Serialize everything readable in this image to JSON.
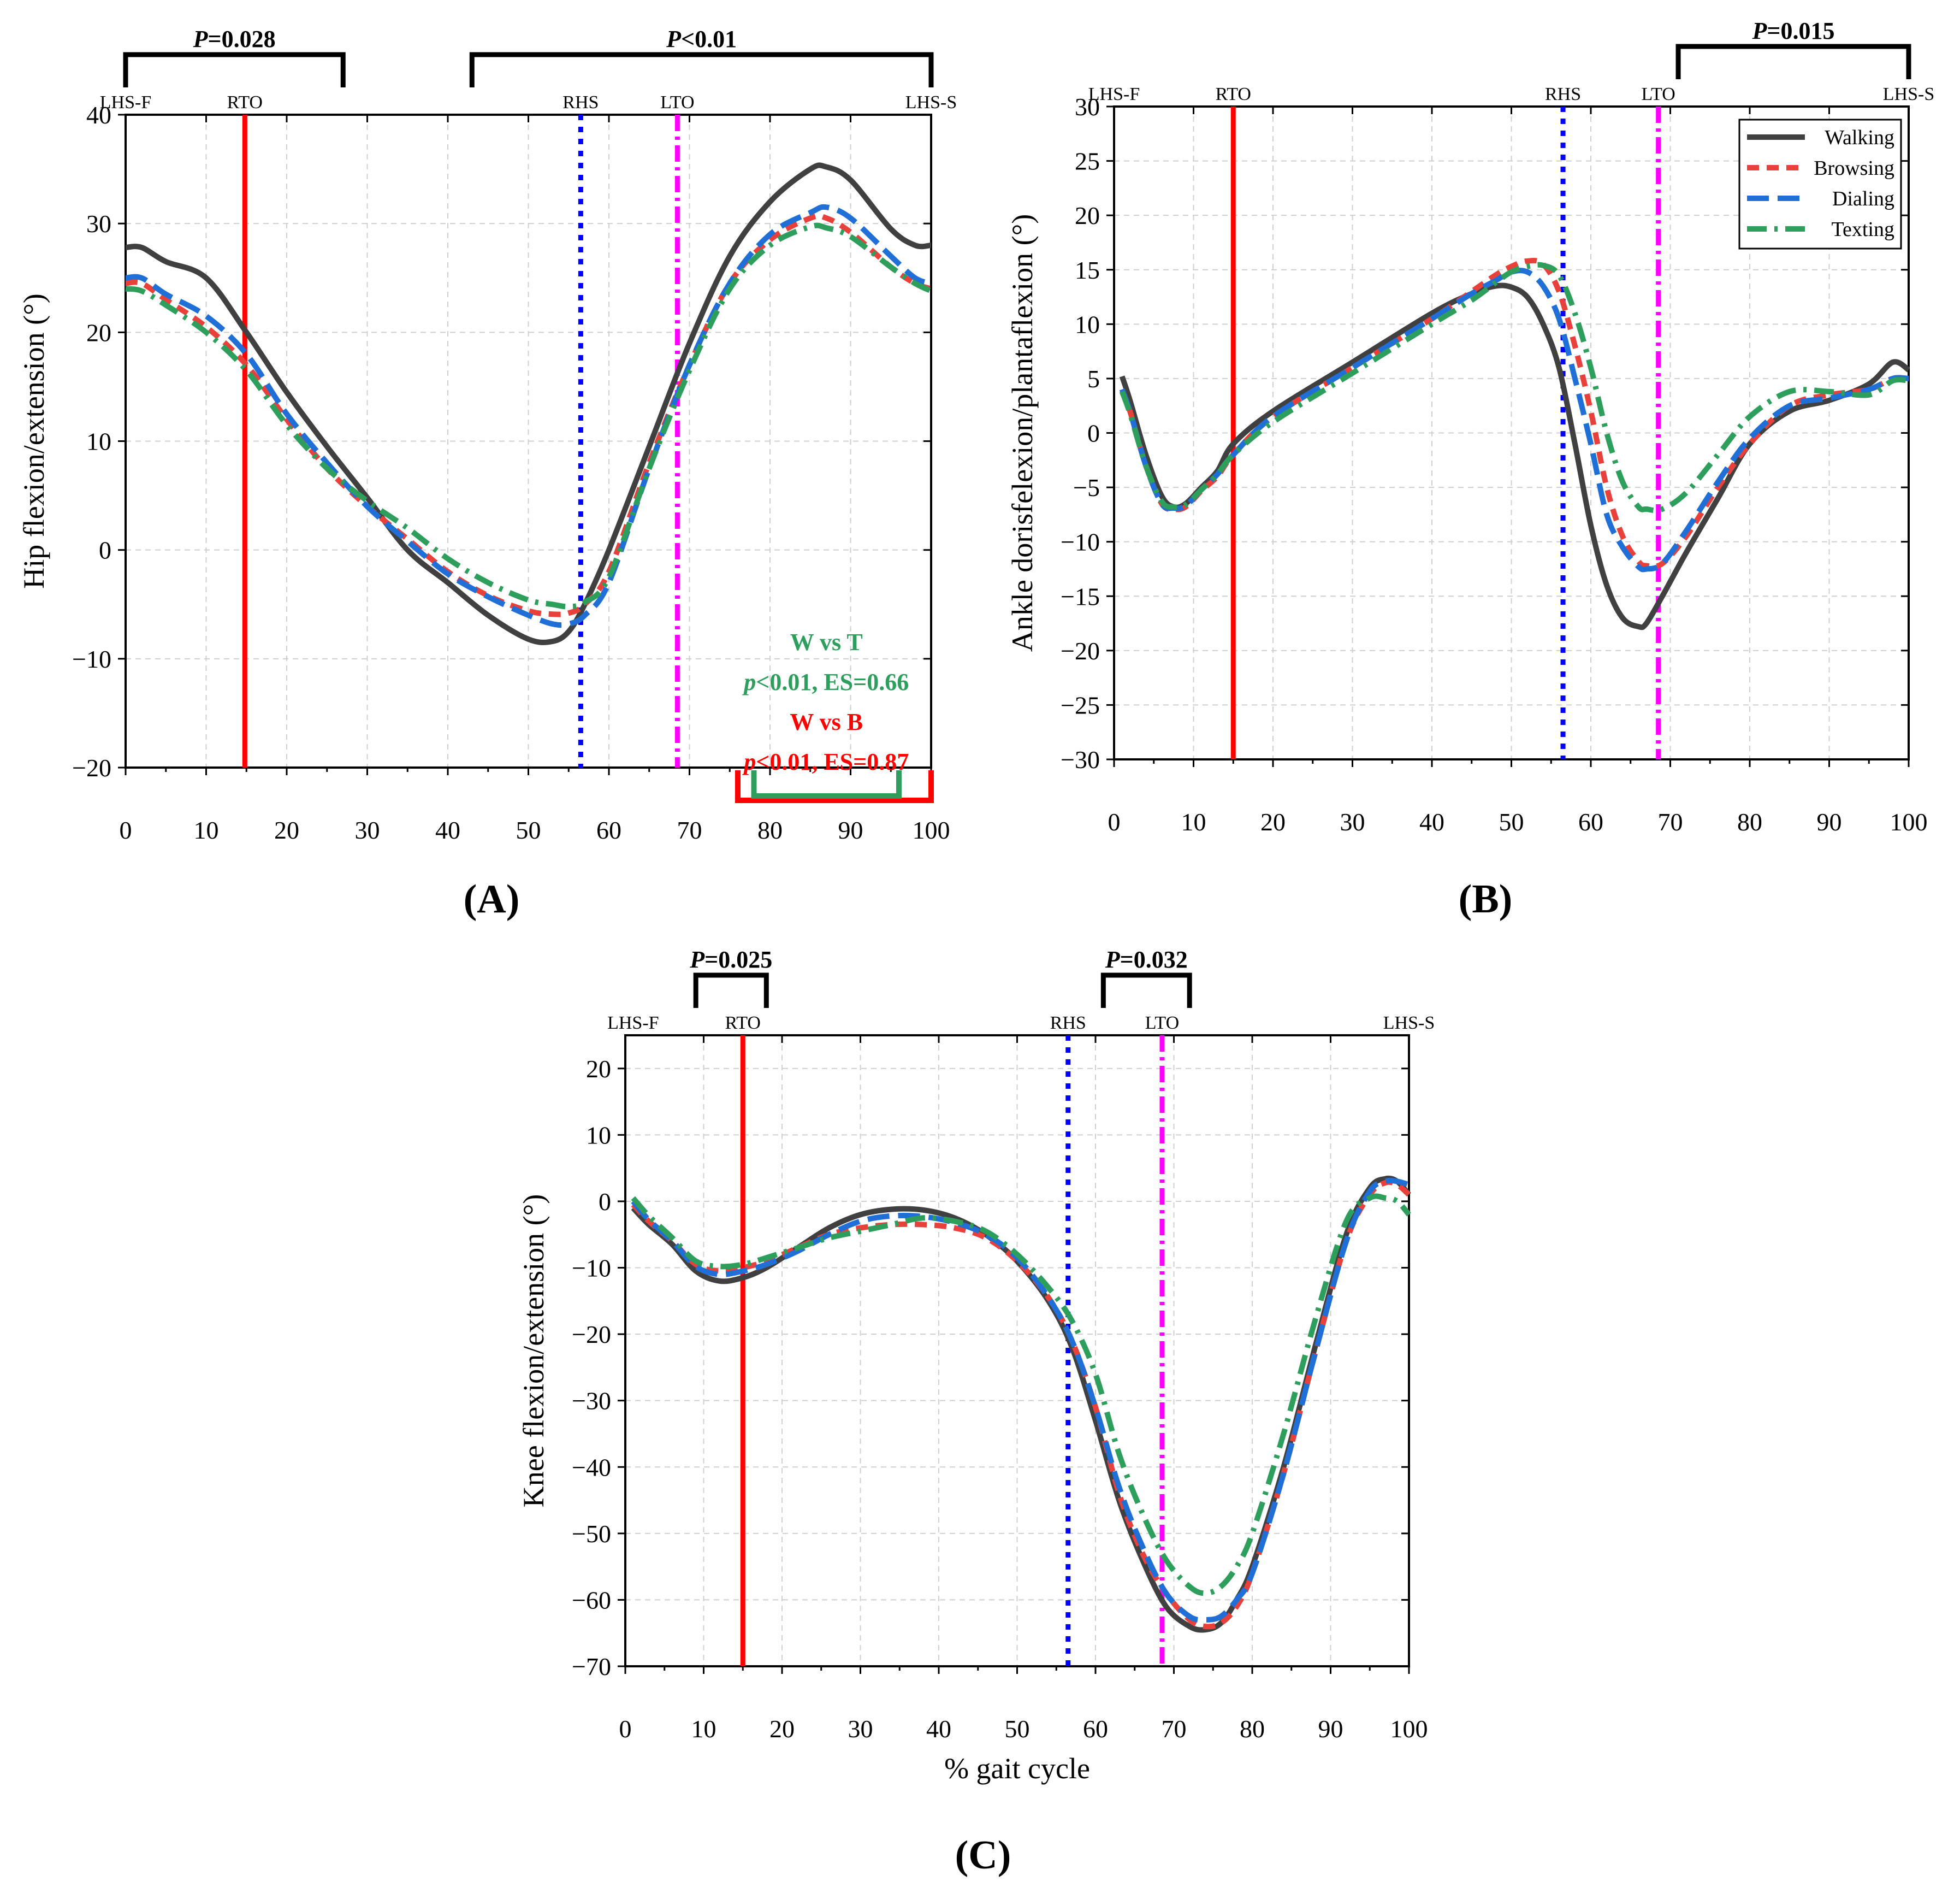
{
  "series_style": {
    "Walking": {
      "color": "#404040",
      "dash": "none"
    },
    "Browsing": {
      "color": "#e8413c",
      "dash": "22 14"
    },
    "Dialing": {
      "color": "#1f6fd6",
      "dash": "40 16"
    },
    "Texting": {
      "color": "#2e9e5c",
      "dash": "36 14 6 14"
    }
  },
  "event_style": {
    "RTO": {
      "color": "#ff0000",
      "dash": "none"
    },
    "RHS": {
      "color": "#0000ff",
      "dash": "10 12"
    },
    "LTO": {
      "color": "#ff00ff",
      "dash": "30 10 6 10"
    }
  },
  "chart_data": [
    {
      "panel": "A",
      "panel_label": "(A)",
      "type": "line",
      "xlabel": "",
      "ylabel": "Hip flexion/extension (°)",
      "xlim": [
        0,
        100
      ],
      "ylim": [
        -20,
        40
      ],
      "xticks": [
        0,
        10,
        20,
        30,
        40,
        50,
        60,
        70,
        80,
        90,
        100
      ],
      "yticks": [
        -20,
        -10,
        0,
        10,
        20,
        30,
        40
      ],
      "events": [
        {
          "name": "LHS-F",
          "x": 0,
          "line": false
        },
        {
          "name": "RTO",
          "x": 14.8,
          "line": true
        },
        {
          "name": "RHS",
          "x": 56.5,
          "line": true
        },
        {
          "name": "LTO",
          "x": 68.5,
          "line": true
        },
        {
          "name": "LHS-S",
          "x": 100,
          "line": false
        }
      ],
      "brackets": [
        {
          "label": "P=0.028",
          "from": 0,
          "to": 27
        },
        {
          "label": "P<0.01",
          "from": 43,
          "to": 100
        }
      ],
      "bottom_brackets": [
        {
          "color": "#ff0000",
          "from": 76,
          "to": 100
        },
        {
          "color": "#2e9e5c",
          "from": 78,
          "to": 96
        }
      ],
      "annotations": [
        {
          "text": "W vs T",
          "color": "#2e9e5c"
        },
        {
          "text": "p<0.01, ES=0.66",
          "color": "#2e9e5c"
        },
        {
          "text": "W vs B",
          "color": "#ff0000"
        },
        {
          "text": "p<0.01, ES=0.87",
          "color": "#ff0000"
        }
      ],
      "legend": false,
      "series": [
        {
          "name": "Walking",
          "x": [
            0,
            2,
            5,
            10,
            15,
            20,
            25,
            30,
            35,
            40,
            45,
            50,
            53,
            55,
            57,
            60,
            65,
            70,
            75,
            80,
            85,
            87,
            90,
            95,
            98,
            100
          ],
          "values": [
            27.8,
            27.8,
            26.5,
            25,
            20,
            14.5,
            9.5,
            4.8,
            0,
            -3,
            -6,
            -8.2,
            -8.4,
            -7.5,
            -5,
            0,
            9.5,
            19,
            27,
            32,
            35,
            35.2,
            34,
            29.5,
            28,
            28
          ]
        },
        {
          "name": "Browsing",
          "x": [
            0,
            2,
            5,
            10,
            15,
            20,
            25,
            30,
            35,
            40,
            45,
            50,
            53,
            55,
            57,
            60,
            65,
            70,
            75,
            80,
            85,
            87,
            90,
            95,
            98,
            100
          ],
          "values": [
            24.5,
            24.5,
            23,
            20.5,
            17,
            12,
            7.5,
            4,
            1,
            -2,
            -4.2,
            -5.6,
            -5.9,
            -5.8,
            -5,
            -2,
            8,
            17,
            24.5,
            28.5,
            30.5,
            30.5,
            29.2,
            26,
            24.5,
            24
          ]
        },
        {
          "name": "Dialing",
          "x": [
            0,
            2,
            5,
            10,
            15,
            20,
            25,
            30,
            35,
            40,
            45,
            50,
            53,
            55,
            57,
            60,
            65,
            70,
            75,
            80,
            85,
            87,
            90,
            95,
            98,
            100
          ],
          "values": [
            25,
            25,
            23.5,
            21.5,
            18,
            12.5,
            8,
            4,
            0.8,
            -2.2,
            -4.3,
            -6,
            -6.8,
            -6.8,
            -6,
            -3,
            7.5,
            17,
            24.5,
            29,
            31,
            31.5,
            30.5,
            27,
            25,
            24.5
          ]
        },
        {
          "name": "Texting",
          "x": [
            0,
            2,
            5,
            10,
            15,
            20,
            25,
            30,
            35,
            40,
            45,
            50,
            53,
            55,
            57,
            60,
            65,
            70,
            75,
            80,
            85,
            87,
            90,
            95,
            98,
            100
          ],
          "values": [
            24,
            23.8,
            22.5,
            20,
            16.5,
            11.5,
            7.5,
            4.5,
            2,
            -0.8,
            -3,
            -4.6,
            -5,
            -5.2,
            -4.8,
            -2.5,
            7.5,
            16.5,
            24,
            28,
            29.7,
            29.6,
            28.8,
            26,
            24.5,
            23.8
          ]
        }
      ]
    },
    {
      "panel": "B",
      "panel_label": "(B)",
      "type": "line",
      "xlabel": "",
      "ylabel": "Ankle dorisfelexion/plantaflexion (°)",
      "xlim": [
        0,
        100
      ],
      "ylim": [
        -30,
        30
      ],
      "xticks": [
        0,
        10,
        20,
        30,
        40,
        50,
        60,
        70,
        80,
        90,
        100
      ],
      "yticks": [
        -30,
        -25,
        -20,
        -15,
        -10,
        -5,
        0,
        5,
        10,
        15,
        20,
        25,
        30
      ],
      "events": [
        {
          "name": "LHS-F",
          "x": 0,
          "line": false
        },
        {
          "name": "RTO",
          "x": 15,
          "line": true
        },
        {
          "name": "RHS",
          "x": 56.5,
          "line": true
        },
        {
          "name": "LTO",
          "x": 68.5,
          "line": true
        },
        {
          "name": "LHS-S",
          "x": 100,
          "line": false
        }
      ],
      "brackets": [
        {
          "label": "P=0.015",
          "from": 71,
          "to": 100
        }
      ],
      "bottom_brackets": [],
      "annotations": [],
      "legend": true,
      "series": [
        {
          "name": "Walking",
          "x": [
            1,
            2,
            4,
            6,
            7.5,
            9,
            11,
            13,
            15,
            20,
            30,
            40,
            45,
            48,
            50,
            52,
            54,
            56,
            58,
            60,
            62,
            64,
            66,
            67,
            69,
            72,
            76,
            80,
            85,
            90,
            95,
            98,
            100
          ],
          "values": [
            5.2,
            3,
            -2,
            -5.8,
            -6.8,
            -6.5,
            -5,
            -3.5,
            -1,
            2,
            6.5,
            11,
            12.8,
            13.5,
            13.4,
            12.5,
            10,
            6,
            -1,
            -8.5,
            -14,
            -17,
            -17.8,
            -17.5,
            -15,
            -11,
            -6,
            -1,
            2,
            3,
            4.5,
            6.5,
            5.8
          ]
        },
        {
          "name": "Browsing",
          "x": [
            1,
            2,
            4,
            6,
            7.5,
            9,
            11,
            13,
            15,
            20,
            30,
            40,
            45,
            48,
            50,
            52,
            54,
            56,
            58,
            60,
            62,
            64,
            66,
            67,
            69,
            72,
            76,
            80,
            85,
            90,
            95,
            98,
            100
          ],
          "values": [
            4,
            2,
            -3,
            -6.5,
            -7,
            -6.8,
            -5.3,
            -4,
            -2,
            1.5,
            6,
            10.5,
            13,
            14.5,
            15.3,
            15.8,
            15.5,
            13,
            8,
            2,
            -5,
            -9.5,
            -11.8,
            -12.2,
            -12,
            -9.5,
            -5,
            -1,
            2.5,
            3.5,
            4,
            5,
            5
          ]
        },
        {
          "name": "Dialing",
          "x": [
            1,
            2,
            4,
            6,
            7.5,
            9,
            11,
            13,
            15,
            20,
            30,
            40,
            45,
            48,
            50,
            52,
            54,
            56,
            58,
            60,
            62,
            64,
            66,
            67,
            69,
            72,
            76,
            80,
            85,
            90,
            95,
            98,
            100
          ],
          "values": [
            4,
            2,
            -3,
            -6.5,
            -6.9,
            -6.7,
            -5.2,
            -3.8,
            -2,
            1.5,
            6,
            10.5,
            12.8,
            14,
            14.8,
            14.8,
            13.5,
            10.5,
            5,
            -1,
            -7.5,
            -10.5,
            -12.3,
            -12.5,
            -12,
            -9,
            -4.5,
            -0.5,
            2.5,
            3.2,
            4,
            5,
            5
          ]
        },
        {
          "name": "Texting",
          "x": [
            1,
            2,
            4,
            6,
            7.5,
            9,
            11,
            13,
            15,
            20,
            30,
            40,
            45,
            48,
            50,
            52,
            54,
            56,
            58,
            60,
            62,
            64,
            66,
            67,
            69,
            72,
            76,
            80,
            85,
            90,
            95,
            98,
            100
          ],
          "values": [
            3.8,
            1.8,
            -3,
            -6.3,
            -6.8,
            -6.6,
            -5.2,
            -3.8,
            -2,
            1,
            5.5,
            10,
            12.2,
            13.8,
            14.8,
            15.3,
            15.4,
            14.5,
            11,
            6,
            0,
            -4.5,
            -6.8,
            -7,
            -7,
            -5.5,
            -2,
            1.5,
            3.8,
            3.8,
            3.5,
            4.8,
            4.8
          ]
        }
      ]
    },
    {
      "panel": "C",
      "panel_label": "(C)",
      "type": "line",
      "xlabel": "% gait cycle",
      "ylabel": "Knee flexion/extension (°)",
      "xlim": [
        0,
        100
      ],
      "ylim": [
        -70,
        25
      ],
      "xticks": [
        0,
        10,
        20,
        30,
        40,
        50,
        60,
        70,
        80,
        90,
        100
      ],
      "yticks": [
        -70,
        -60,
        -50,
        -40,
        -30,
        -20,
        -10,
        0,
        10,
        20
      ],
      "events": [
        {
          "name": "LHS-F",
          "x": 1,
          "line": false
        },
        {
          "name": "RTO",
          "x": 15,
          "line": true
        },
        {
          "name": "RHS",
          "x": 56.5,
          "line": true
        },
        {
          "name": "LTO",
          "x": 68.5,
          "line": true
        },
        {
          "name": "LHS-S",
          "x": 100,
          "line": false
        }
      ],
      "brackets": [
        {
          "label": "P=0.025",
          "from": 9,
          "to": 18
        },
        {
          "label": "P=0.032",
          "from": 61,
          "to": 72
        }
      ],
      "bottom_brackets": [],
      "annotations": [],
      "legend": false,
      "series": [
        {
          "name": "Walking",
          "x": [
            1,
            3,
            6,
            9,
            12,
            15,
            18,
            22,
            26,
            30,
            34,
            38,
            42,
            46,
            50,
            54,
            57,
            60,
            63,
            66,
            69,
            72,
            74,
            76,
            78,
            80,
            84,
            88,
            92,
            95,
            97,
            98.5,
            100
          ],
          "values": [
            -1,
            -3.5,
            -6.5,
            -10.5,
            -12,
            -11.5,
            -10,
            -7,
            -4,
            -2,
            -1.2,
            -1.3,
            -2.5,
            -5,
            -9,
            -15,
            -22,
            -33,
            -45,
            -54,
            -61,
            -64,
            -64.5,
            -63.5,
            -60,
            -55,
            -40,
            -22,
            -5,
            2,
            3.4,
            3,
            1
          ]
        },
        {
          "name": "Browsing",
          "x": [
            1,
            3,
            6,
            9,
            12,
            15,
            18,
            22,
            26,
            30,
            34,
            38,
            42,
            46,
            50,
            54,
            57,
            60,
            63,
            66,
            69,
            72,
            74,
            76,
            78,
            80,
            84,
            88,
            92,
            95,
            97,
            98.5,
            100
          ],
          "values": [
            -0.5,
            -3,
            -6,
            -9.5,
            -10.5,
            -10,
            -9,
            -7,
            -5,
            -4,
            -3.5,
            -3.5,
            -4,
            -5.5,
            -9,
            -14.5,
            -21,
            -31,
            -44,
            -53,
            -59,
            -63,
            -64,
            -63.5,
            -61,
            -56,
            -41,
            -23,
            -6,
            1,
            2.8,
            2.5,
            1
          ]
        },
        {
          "name": "Dialing",
          "x": [
            1,
            3,
            6,
            9,
            12,
            15,
            18,
            22,
            26,
            30,
            34,
            38,
            42,
            46,
            50,
            54,
            57,
            60,
            63,
            66,
            69,
            72,
            74,
            76,
            78,
            80,
            84,
            88,
            92,
            95,
            97,
            98.5,
            100
          ],
          "values": [
            0,
            -2.8,
            -6,
            -9.8,
            -11,
            -10.5,
            -9.5,
            -7.5,
            -5,
            -3,
            -2.2,
            -2.3,
            -3.2,
            -5,
            -8.5,
            -14.5,
            -21,
            -31,
            -43,
            -52,
            -59,
            -62.5,
            -63,
            -62.5,
            -60,
            -56,
            -41,
            -23,
            -6,
            1.5,
            3,
            3,
            2.5
          ]
        },
        {
          "name": "Texting",
          "x": [
            1,
            3,
            6,
            9,
            12,
            15,
            18,
            22,
            26,
            30,
            34,
            38,
            42,
            46,
            50,
            54,
            57,
            60,
            63,
            66,
            69,
            72,
            74,
            76,
            78,
            80,
            84,
            88,
            92,
            95,
            97,
            98.5,
            100
          ],
          "values": [
            0.5,
            -2.2,
            -5.5,
            -9,
            -9.8,
            -9.5,
            -8.5,
            -7,
            -5.5,
            -4.5,
            -3.5,
            -2.5,
            -3,
            -4.5,
            -8,
            -13,
            -18,
            -26,
            -38,
            -47,
            -54,
            -58,
            -59,
            -58,
            -55,
            -50,
            -35,
            -18,
            -3,
            0.5,
            0.5,
            0,
            -2
          ]
        }
      ]
    }
  ]
}
